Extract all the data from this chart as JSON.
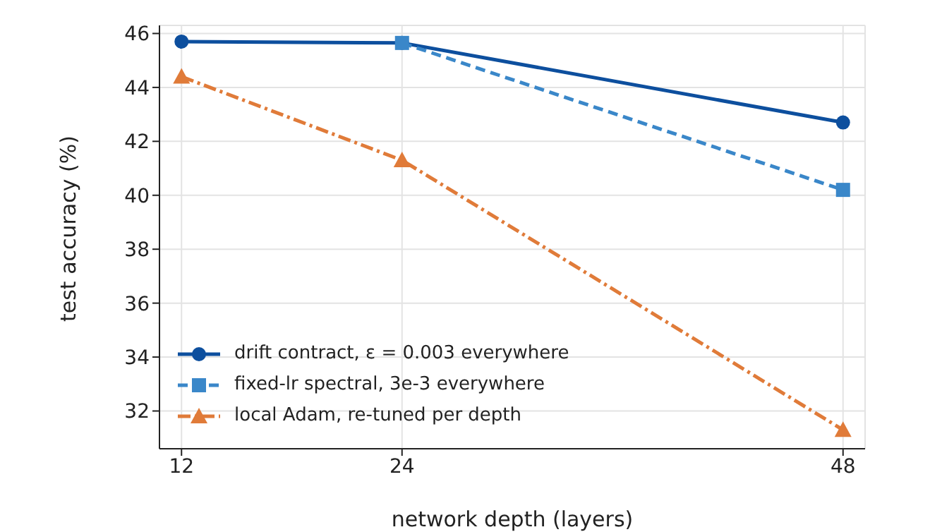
{
  "chart_data": {
    "type": "line",
    "xlabel": "network depth (layers)",
    "ylabel": "test accuracy (%)",
    "x": [
      12,
      24,
      48
    ],
    "series": [
      {
        "name": "drift contract, ε = 0.003 everywhere",
        "color": "#0d4f9e",
        "values": [
          45.7,
          45.65,
          42.7
        ],
        "marker": "circle",
        "line_style": "solid"
      },
      {
        "name": "fixed-lr spectral, 3e-3 everywhere",
        "color": "#3a87c9",
        "values": [
          null,
          45.65,
          40.2
        ],
        "marker": "square",
        "line_style": "dashed"
      },
      {
        "name": "local Adam, re-tuned per depth",
        "color": "#e07b39",
        "values": [
          44.4,
          41.3,
          31.3
        ],
        "marker": "triangle",
        "line_style": "dashdot"
      }
    ],
    "xlim": [
      10.8,
      49.2
    ],
    "xticks": [
      12,
      24,
      48
    ],
    "ylim": [
      30.6,
      46.3
    ],
    "yticks": [
      32,
      34,
      36,
      38,
      40,
      42,
      44,
      46
    ],
    "grid": true,
    "legend": "bottom left"
  }
}
